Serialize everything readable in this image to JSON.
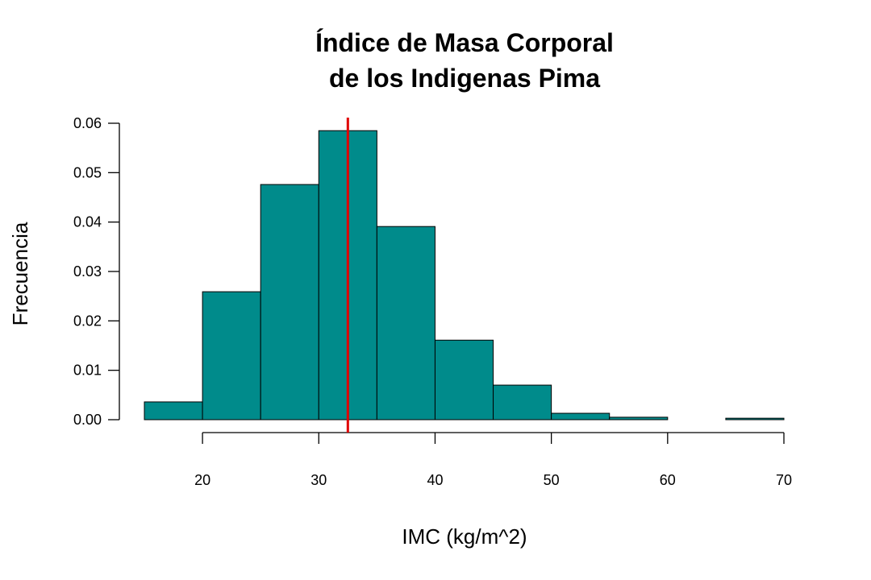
{
  "chart_data": {
    "type": "bar",
    "title": "Índice de Masa Corporal",
    "subtitle": "de los Indigenas Pima",
    "xlabel": "IMC (kg/m^2)",
    "ylabel": "Frecuencia",
    "bins": [
      {
        "x0": 15,
        "x1": 20,
        "value": 0.0036
      },
      {
        "x0": 20,
        "x1": 25,
        "value": 0.0259
      },
      {
        "x0": 25,
        "x1": 30,
        "value": 0.0476
      },
      {
        "x0": 30,
        "x1": 35,
        "value": 0.0585
      },
      {
        "x0": 35,
        "x1": 40,
        "value": 0.0391
      },
      {
        "x0": 40,
        "x1": 45,
        "value": 0.0161
      },
      {
        "x0": 45,
        "x1": 50,
        "value": 0.007
      },
      {
        "x0": 50,
        "x1": 55,
        "value": 0.0013
      },
      {
        "x0": 55,
        "x1": 60,
        "value": 0.0005
      },
      {
        "x0": 60,
        "x1": 65,
        "value": 0.0
      },
      {
        "x0": 65,
        "x1": 70,
        "value": 0.0003
      }
    ],
    "x_ticks": [
      "20",
      "30",
      "40",
      "50",
      "60",
      "70"
    ],
    "y_ticks": [
      "0.00",
      "0.01",
      "0.02",
      "0.03",
      "0.04",
      "0.05",
      "0.06"
    ],
    "xlim": [
      15,
      70
    ],
    "ylim": [
      0,
      0.06
    ],
    "reference_line": {
      "x": 32.5,
      "color": "#e00000"
    },
    "bar_color": "#008b8b",
    "grid": false
  }
}
